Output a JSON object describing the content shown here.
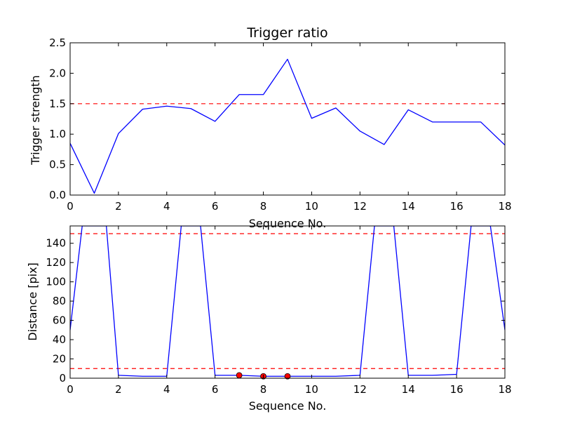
{
  "chart_data": [
    {
      "type": "line",
      "title": "Trigger ratio",
      "xlabel": "Sequence No.",
      "ylabel": "Trigger strength",
      "xlim": [
        0,
        18
      ],
      "ylim": [
        0,
        2.5
      ],
      "xticks": [
        0,
        2,
        4,
        6,
        8,
        10,
        12,
        14,
        16,
        18
      ],
      "xtick_labels": [
        "0",
        "2",
        "4",
        "6",
        "8",
        "10",
        "12",
        "14",
        "16",
        "18"
      ],
      "yticks": [
        0,
        0.5,
        1.0,
        1.5,
        2.0,
        2.5
      ],
      "ytick_labels": [
        "0.0",
        "0.5",
        "1.0",
        "1.5",
        "2.0",
        "2.5"
      ],
      "grid": false,
      "series": [
        {
          "color": "#0000ff",
          "x": [
            0,
            1,
            2,
            3,
            4,
            5,
            6,
            7,
            8,
            9,
            10,
            11,
            12,
            13,
            14,
            15,
            16,
            17,
            18
          ],
          "values": [
            0.85,
            0.03,
            1.01,
            1.41,
            1.46,
            1.42,
            1.21,
            1.65,
            1.65,
            2.23,
            1.26,
            1.43,
            1.05,
            0.83,
            1.4,
            1.2,
            1.2,
            1.2,
            0.82
          ]
        }
      ],
      "threshold_lines": [
        {
          "y": 1.5,
          "color": "#ff0000",
          "style": "dashed"
        }
      ]
    },
    {
      "type": "line",
      "title": "",
      "xlabel": "Sequence No.",
      "ylabel": "Distance [pix]",
      "xlim": [
        0,
        18
      ],
      "ylim": [
        0,
        158
      ],
      "xticks": [
        0,
        2,
        4,
        6,
        8,
        10,
        12,
        14,
        16,
        18
      ],
      "xtick_labels": [
        "0",
        "2",
        "4",
        "6",
        "8",
        "10",
        "12",
        "14",
        "16",
        "18"
      ],
      "yticks": [
        0,
        20,
        40,
        60,
        80,
        100,
        120,
        140
      ],
      "ytick_labels": [
        "0",
        "20",
        "40",
        "60",
        "80",
        "100",
        "120",
        "140"
      ],
      "grid": false,
      "series": [
        {
          "color": "#0000ff",
          "x": [
            0,
            0.5,
            1.5,
            2,
            3,
            4,
            4.6,
            5.4,
            6,
            7,
            8,
            9,
            10,
            11,
            12,
            12.6,
            13.4,
            14,
            15,
            16,
            16.6,
            17.4,
            18
          ],
          "values": [
            50,
            158,
            158,
            3,
            2,
            2,
            158,
            158,
            3,
            3,
            2,
            2,
            2,
            2,
            3,
            158,
            158,
            3,
            3,
            4,
            158,
            158,
            50
          ]
        }
      ],
      "markers": {
        "color": "#ff0000",
        "x": [
          7,
          8,
          9
        ],
        "values": [
          3,
          2,
          2
        ]
      },
      "threshold_lines": [
        {
          "y": 150,
          "color": "#ff0000",
          "style": "dashed"
        },
        {
          "y": 10,
          "color": "#ff0000",
          "style": "dashed"
        }
      ]
    }
  ]
}
